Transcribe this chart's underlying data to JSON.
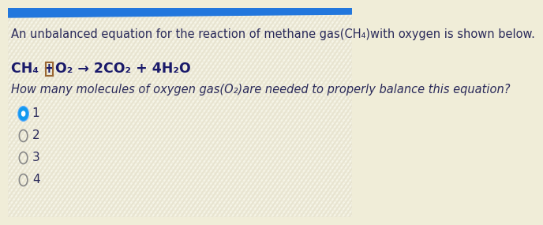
{
  "background_color": "#f0edd8",
  "texture_color1": "#e8e4cc",
  "texture_color2": "#ddd8b8",
  "top_bar_color": "#2277dd",
  "text_color": "#2a2a5a",
  "equation_color": "#1a1a6a",
  "option_circle_color": "#888888",
  "selected_circle_fill": "#1199ee",
  "selected_circle_border": "#55aaff",
  "box_border_color": "#996633",
  "title_text": "An unbalanced equation for the reaction of methane gas(CH₄)with oxygen is shown below.",
  "equation_part1": "CH₄ +",
  "equation_part2": "O₂ → 2CO₂ + 4H₂O",
  "question_text": "How many molecules of oxygen gas(O₂)are needed to properly balance this equation?",
  "options": [
    "1",
    "2",
    "3",
    "4"
  ],
  "selected_option": 0,
  "title_fontsize": 10.5,
  "equation_fontsize": 12.5,
  "question_fontsize": 10.5,
  "options_fontsize": 11
}
